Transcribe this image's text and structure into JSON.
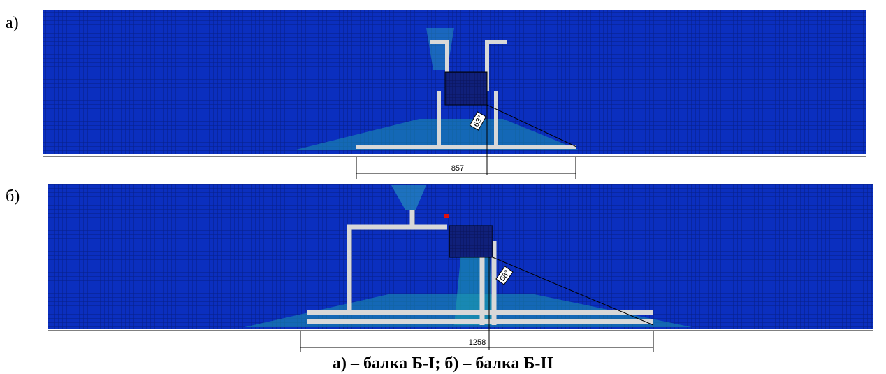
{
  "panels": [
    {
      "label": "а)",
      "dimension": "857",
      "angle": "63°"
    },
    {
      "label": "б)",
      "dimension": "1258",
      "angle": "58°"
    }
  ],
  "caption": "а) – балка Б-I; б) – балка Б-II"
}
